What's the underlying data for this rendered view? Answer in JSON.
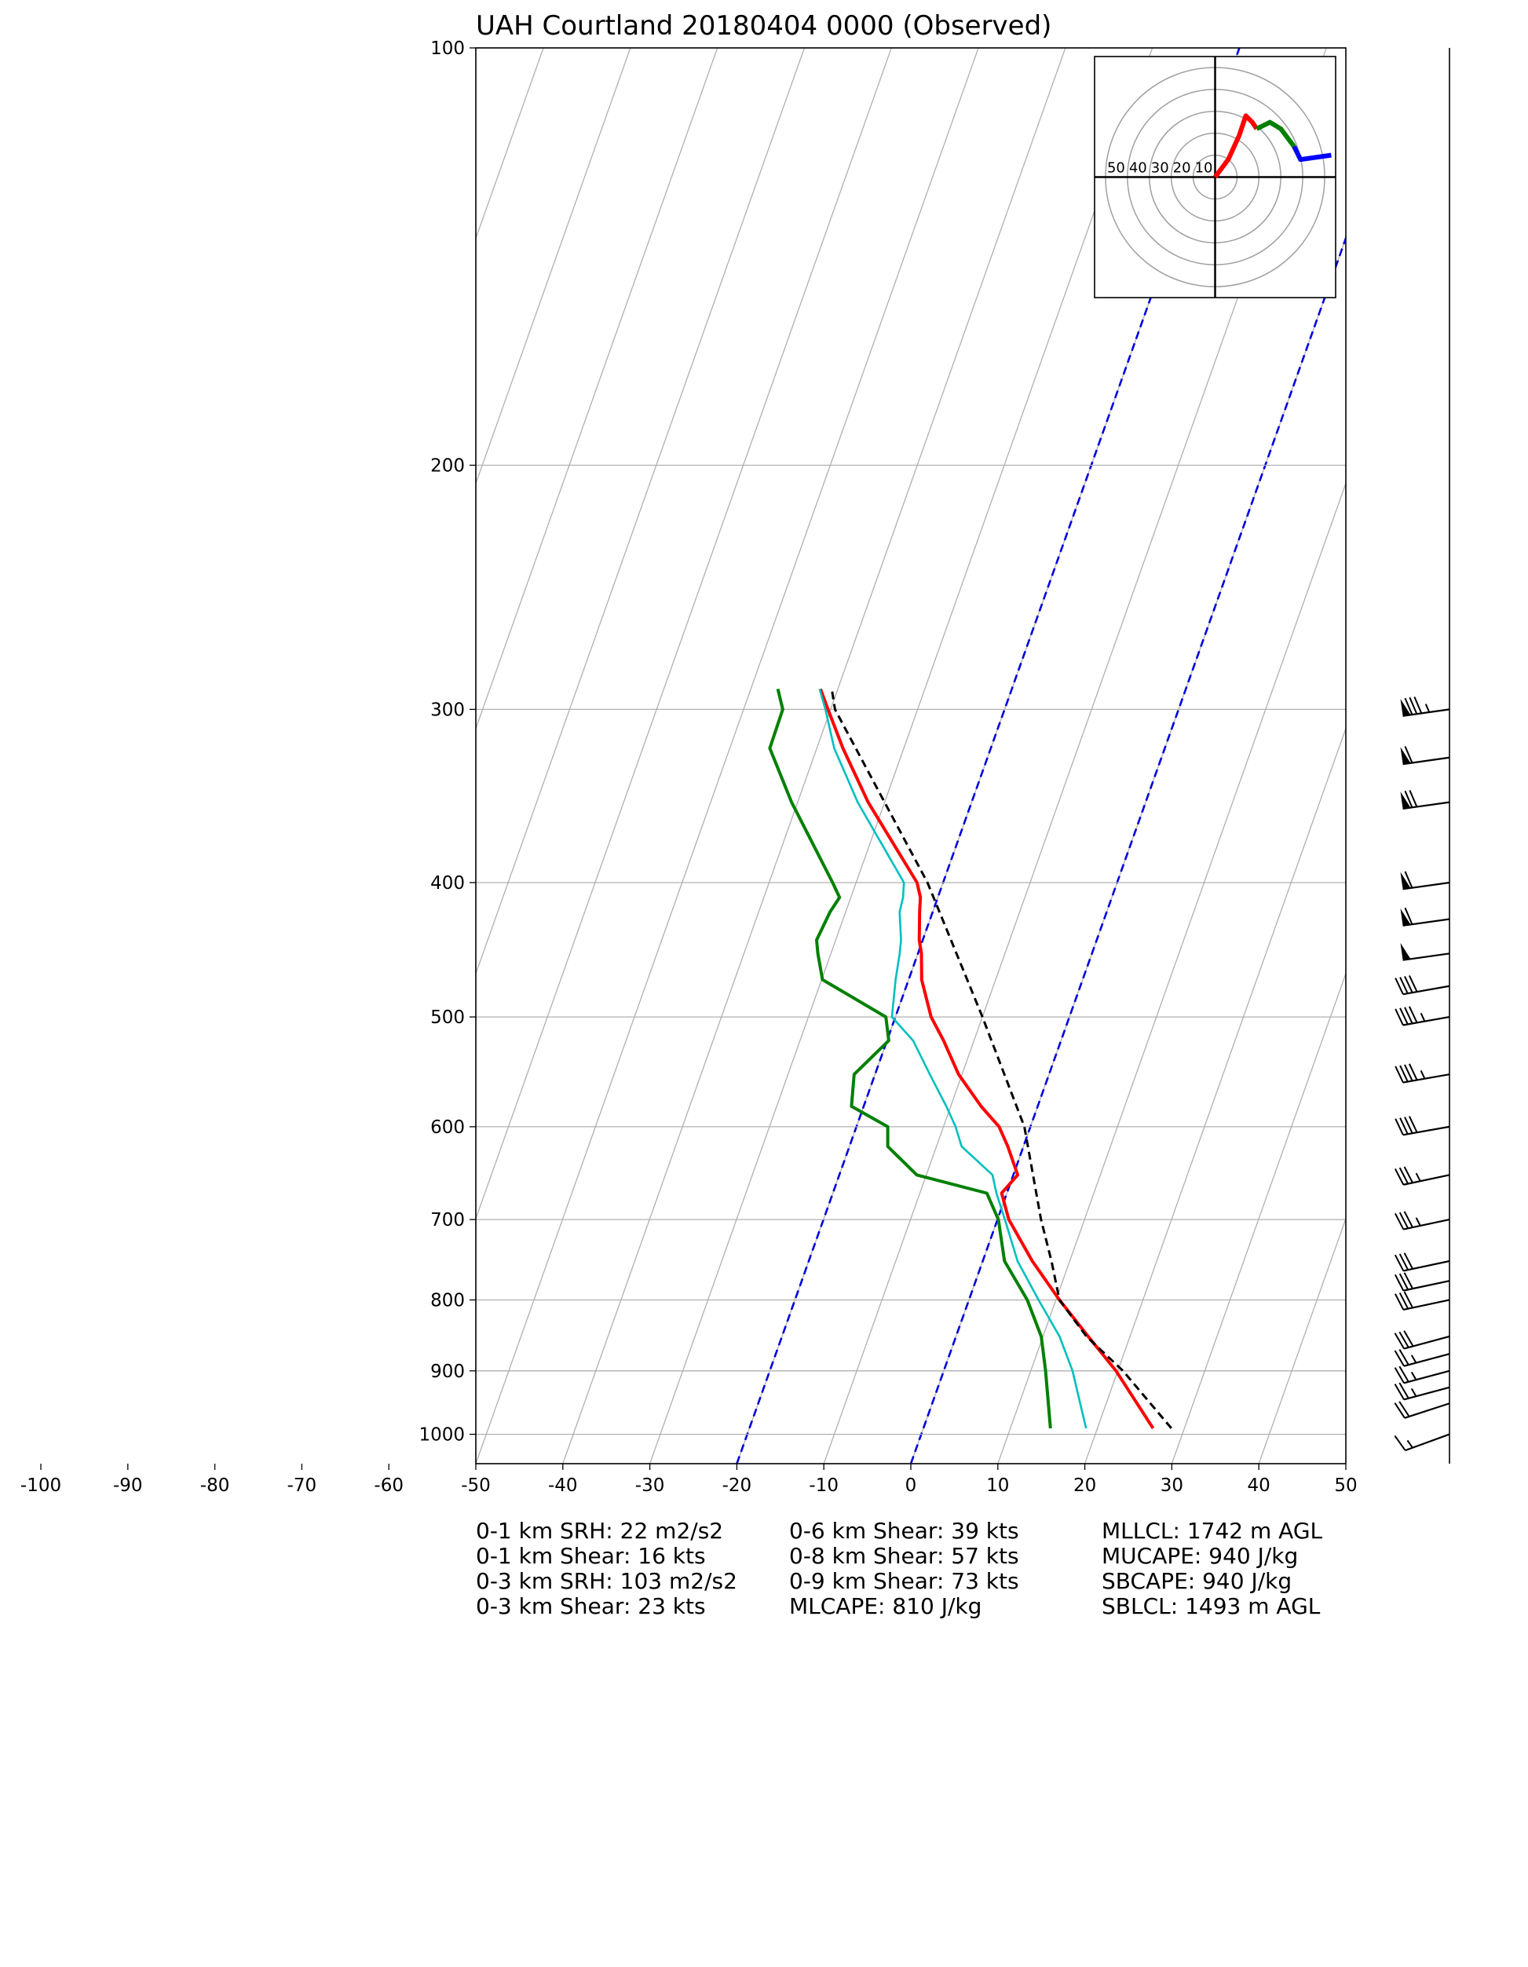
{
  "chart_data": {
    "type": "skewt",
    "title": "UAH Courtland 20180404 0000   (Observed)",
    "xlim": [
      -50,
      50
    ],
    "xticks": [
      -100,
      -90,
      -80,
      -70,
      -60,
      -50,
      -40,
      -30,
      -20,
      -10,
      0,
      10,
      20,
      30,
      40,
      50
    ],
    "ylim": [
      1050,
      100
    ],
    "yticks": [
      100,
      200,
      300,
      400,
      500,
      600,
      700,
      800,
      900,
      1000
    ],
    "log_scale_y": true,
    "grid": true,
    "highlight_isotherms": [
      -20,
      0
    ],
    "highlight_color": "#0000dd",
    "series": [
      {
        "color": "#ff0000",
        "style": "solid",
        "pressure": [
          990,
          900,
          850,
          800,
          750,
          700,
          670,
          650,
          620,
          600,
          580,
          550,
          520,
          500,
          470,
          450,
          440,
          420,
          410,
          400,
          350,
          320,
          300,
          290
        ],
        "values": [
          26.4,
          19.8,
          15.2,
          10.4,
          5.7,
          1.3,
          -0.6,
          0.5,
          -1.8,
          -3.6,
          -6.5,
          -10.4,
          -13.5,
          -15.9,
          -18.5,
          -19.6,
          -20.4,
          -21.5,
          -22.0,
          -23.0,
          -31.9,
          -37.0,
          -40.3,
          -42.0
        ]
      },
      {
        "color": "#00bfbf",
        "style": "thin",
        "pressure": [
          990,
          900,
          850,
          800,
          750,
          700,
          670,
          650,
          620,
          600,
          580,
          550,
          520,
          500,
          470,
          450,
          440,
          420,
          410,
          400,
          350,
          320,
          300,
          290
        ],
        "values": [
          18.7,
          14.8,
          11.9,
          8.0,
          4.0,
          0.85,
          -1.2,
          -2.4,
          -7.1,
          -8.6,
          -10.5,
          -13.7,
          -17.0,
          -20.4,
          -21.5,
          -22.1,
          -22.5,
          -23.8,
          -24.0,
          -24.5,
          -33.1,
          -38.0,
          -40.6,
          -42.1
        ]
      },
      {
        "color": "#008000",
        "style": "solid",
        "pressure": [
          990,
          900,
          850,
          800,
          750,
          700,
          670,
          650,
          620,
          600,
          580,
          550,
          520,
          500,
          470,
          450,
          440,
          420,
          410,
          400,
          350,
          320,
          300,
          290
        ],
        "values": [
          14.6,
          11.7,
          9.8,
          6.7,
          2.5,
          0.1,
          -2.3,
          -11.1,
          -15.6,
          -16.4,
          -21.4,
          -22.4,
          -19.8,
          -21.1,
          -29.9,
          -31.5,
          -32.2,
          -31.8,
          -31.3,
          -32.7,
          -40.7,
          -45.4,
          -45.5,
          -46.9
        ]
      },
      {
        "color": "#000000",
        "style": "dashed",
        "pressure": [
          990,
          900,
          850,
          800,
          750,
          700,
          600,
          500,
          400,
          300,
          290
        ],
        "values": [
          28.5,
          20.6,
          15.0,
          10.4,
          7.9,
          5.0,
          -0.7,
          -10.0,
          -21.8,
          -39.5,
          -40.7
        ]
      }
    ],
    "wind_barbs": {
      "pressure": [
        1000,
        950,
        925,
        900,
        875,
        850,
        800,
        775,
        750,
        700,
        650,
        600,
        550,
        500,
        475,
        450,
        425,
        400,
        350,
        325,
        300
      ],
      "speed": [
        15,
        20,
        25,
        25,
        25,
        30,
        30,
        30,
        30,
        35,
        35,
        40,
        45,
        45,
        40,
        50,
        60,
        60,
        70,
        60,
        85
      ],
      "direction": [
        250,
        252,
        255,
        255,
        255,
        255,
        258,
        258,
        258,
        258,
        258,
        260,
        260,
        260,
        260,
        262,
        262,
        262,
        262,
        262,
        262
      ]
    },
    "hodograph": {
      "lim": [
        -55,
        55
      ],
      "rings": [
        10,
        20,
        30,
        40,
        50
      ],
      "series": [
        {
          "color": "#ff0000",
          "u": [
            0,
            6,
            11,
            14,
            17,
            19
          ],
          "v": [
            0,
            8,
            19,
            28,
            25,
            22
          ]
        },
        {
          "color": "#008000",
          "u": [
            19,
            25,
            30,
            36
          ],
          "v": [
            22,
            25,
            22,
            14
          ]
        },
        {
          "color": "#0000ff",
          "u": [
            36,
            39,
            46,
            53
          ],
          "v": [
            14,
            8,
            9,
            10
          ]
        }
      ]
    },
    "parameters": [
      [
        "0-1 km SRH: 22 m2/s2",
        "0-1 km Shear: 16 kts",
        "0-3 km SRH: 103 m2/s2",
        "0-3 km Shear: 23 kts"
      ],
      [
        "0-6 km Shear: 39 kts",
        "0-8 km Shear: 57 kts",
        "0-9 km Shear: 73 kts",
        "MLCAPE: 810 J/kg"
      ],
      [
        "MLLCL: 1742 m AGL",
        "MUCAPE: 940 J/kg",
        "SBCAPE: 940 J/kg",
        "SBLCL: 1493 m AGL"
      ]
    ]
  }
}
